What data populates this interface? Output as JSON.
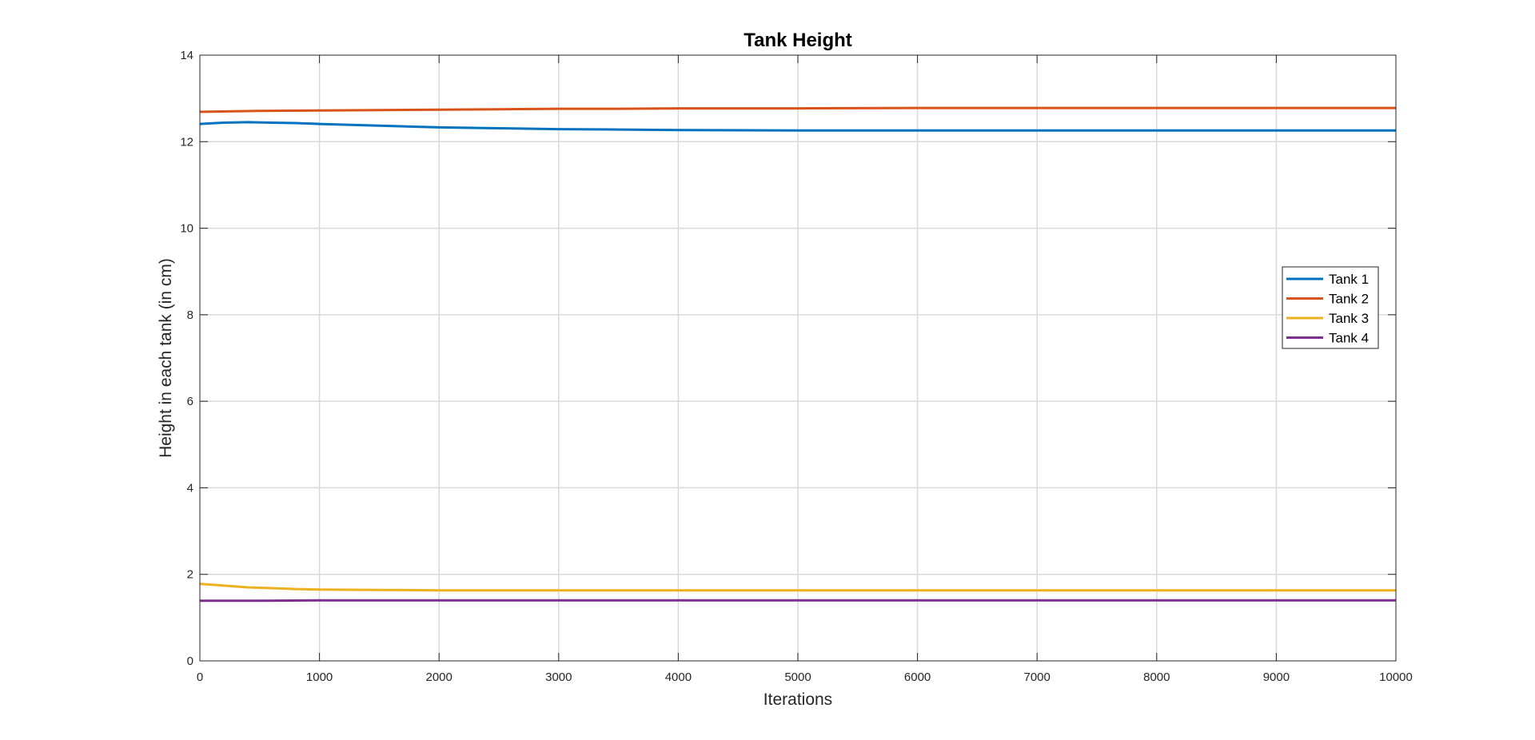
{
  "chart_data": {
    "type": "line",
    "title": "Tank Height",
    "xlabel": "Iterations",
    "ylabel": "Height in each tank (in cm)",
    "xlim": [
      0,
      10000
    ],
    "ylim": [
      0,
      14
    ],
    "xticks": [
      0,
      1000,
      2000,
      3000,
      4000,
      5000,
      6000,
      7000,
      8000,
      9000,
      10000
    ],
    "yticks": [
      0,
      2,
      4,
      6,
      8,
      10,
      12,
      14
    ],
    "xtick_labels": [
      "0",
      "1000",
      "2000",
      "3000",
      "4000",
      "5000",
      "6000",
      "7000",
      "8000",
      "9000",
      "10000"
    ],
    "ytick_labels": [
      "0",
      "2",
      "4",
      "6",
      "8",
      "10",
      "12",
      "14"
    ],
    "grid": true,
    "legend_position": "right",
    "series": [
      {
        "name": "Tank 1",
        "color": "#0072BD",
        "x": [
          0,
          200,
          400,
          600,
          800,
          1000,
          1500,
          2000,
          2500,
          3000,
          3500,
          4000,
          5000,
          6000,
          7000,
          8000,
          9000,
          10000
        ],
        "values": [
          12.41,
          12.44,
          12.45,
          12.44,
          12.43,
          12.41,
          12.37,
          12.33,
          12.31,
          12.29,
          12.28,
          12.27,
          12.26,
          12.26,
          12.26,
          12.26,
          12.26,
          12.26
        ]
      },
      {
        "name": "Tank 2",
        "color": "#D95319",
        "x": [
          0,
          500,
          1000,
          1500,
          2000,
          2500,
          3000,
          3500,
          4000,
          5000,
          6000,
          7000,
          8000,
          9000,
          10000
        ],
        "values": [
          12.69,
          12.71,
          12.72,
          12.73,
          12.74,
          12.75,
          12.76,
          12.76,
          12.77,
          12.77,
          12.78,
          12.78,
          12.78,
          12.78,
          12.78
        ]
      },
      {
        "name": "Tank 3",
        "color": "#EDB120",
        "x": [
          0,
          200,
          400,
          600,
          800,
          1000,
          1500,
          2000,
          3000,
          4000,
          5000,
          6000,
          7000,
          8000,
          9000,
          10000
        ],
        "values": [
          1.78,
          1.74,
          1.7,
          1.68,
          1.66,
          1.65,
          1.64,
          1.63,
          1.63,
          1.63,
          1.63,
          1.63,
          1.63,
          1.63,
          1.63,
          1.63
        ]
      },
      {
        "name": "Tank 4",
        "color": "#7E2F8E",
        "x": [
          0,
          500,
          1000,
          2000,
          3000,
          4000,
          5000,
          6000,
          7000,
          8000,
          9000,
          10000
        ],
        "values": [
          1.39,
          1.39,
          1.4,
          1.4,
          1.4,
          1.4,
          1.4,
          1.4,
          1.4,
          1.4,
          1.4,
          1.4
        ]
      }
    ]
  }
}
